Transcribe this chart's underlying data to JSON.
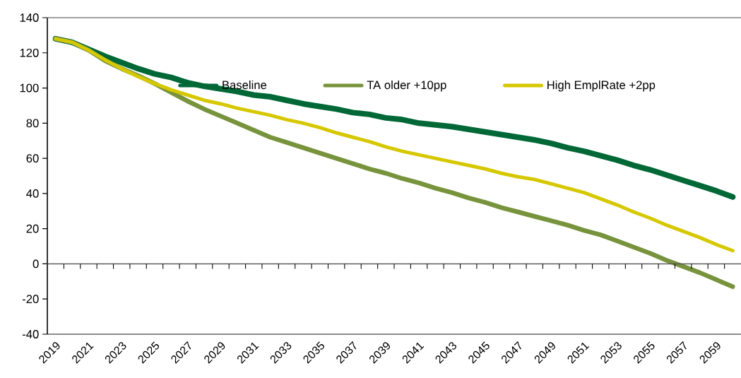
{
  "chart_data": {
    "type": "line",
    "categories": [
      "2019",
      null,
      "2021",
      null,
      "2023",
      null,
      "2025",
      null,
      "2027",
      null,
      "2029",
      null,
      "2031",
      null,
      "2033",
      null,
      "2035",
      null,
      "2037",
      null,
      "2039",
      null,
      "2041",
      null,
      "2043",
      null,
      "2045",
      null,
      "2047",
      null,
      "2049",
      null,
      "2051",
      null,
      "2053",
      null,
      "2055",
      null,
      "2057",
      null,
      "2059",
      null
    ],
    "series": [
      {
        "name": "Baseline",
        "color": "#006837",
        "values": [
          128,
          126,
          122,
          118,
          114.5,
          111,
          108,
          106,
          103,
          101,
          99.5,
          98,
          96,
          95,
          93,
          91,
          89.5,
          88,
          86,
          85,
          83,
          82,
          80,
          79,
          78,
          76.5,
          75,
          73.5,
          72,
          70.5,
          68.5,
          66,
          64,
          61.5,
          59,
          56,
          53.5,
          50.5,
          47.5,
          44.5,
          41.5,
          38
        ]
      },
      {
        "name": "TA older +10pp",
        "color": "#77933c",
        "values": [
          128,
          126,
          121.5,
          115.5,
          111,
          107,
          102.5,
          97.5,
          92.5,
          88,
          84,
          80,
          76,
          72,
          69,
          66,
          63,
          60,
          57,
          54,
          51.5,
          48.5,
          46,
          43,
          40.5,
          37.5,
          35,
          32,
          29.5,
          27,
          24.5,
          22,
          19,
          16.5,
          13,
          9.5,
          6,
          2,
          -1.5,
          -5,
          -9,
          -13
        ]
      },
      {
        "name": "High EmplRate +2pp",
        "color": "#d6c800",
        "values": [
          128,
          126,
          121.5,
          116,
          111,
          106.5,
          102.5,
          99,
          96,
          93,
          91,
          88.5,
          86.5,
          84.5,
          82,
          80,
          77.5,
          74.5,
          72,
          69.5,
          66.5,
          64,
          62,
          60,
          58,
          56,
          54,
          51.5,
          49.5,
          48,
          45.5,
          43,
          40.5,
          37,
          33.5,
          29.5,
          26,
          22,
          18.5,
          15,
          11,
          7.5
        ]
      }
    ],
    "ylim": [
      -40,
      140
    ],
    "yticks": [
      -40,
      -20,
      0,
      20,
      40,
      60,
      80,
      100,
      120,
      140
    ],
    "legend": "top",
    "line_style": "solid"
  }
}
